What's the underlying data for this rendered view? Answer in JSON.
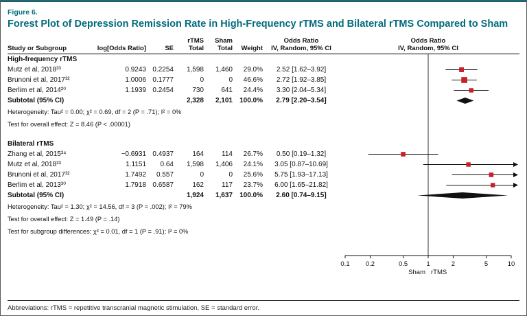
{
  "figure": {
    "label": "Figure 6.",
    "title": "Forest Plot of Depression Remission Rate in High-Frequency rTMS and Bilateral rTMS Compared to Sham",
    "abbreviations": "Abbreviations: rTMS = repetitive transcranial magnetic stimulation, SE = standard error.",
    "accent_color": "#006B7D",
    "marker_color": "#C8202A"
  },
  "table": {
    "headers": {
      "study": "Study or Subgroup",
      "log_or": "log[Odds Ratio]",
      "se": "SE",
      "rtms_total_top": "rTMS",
      "rtms_total_bottom": "Total",
      "sham_total_top": "Sham",
      "sham_total_bottom": "Total",
      "weight": "Weight",
      "or_text_top": "Odds Ratio",
      "or_text_bottom": "IV, Random, 95% CI",
      "or_plot_top": "Odds Ratio",
      "or_plot_bottom": "IV, Random, 95% CI"
    }
  },
  "chart_data": {
    "type": "forest",
    "x_scale": "log10",
    "x_range": [
      0.1,
      10
    ],
    "axis_ticks": [
      0.1,
      0.2,
      0.5,
      1,
      2,
      5,
      10
    ],
    "axis_left_label": "Sham",
    "axis_right_label": "rTMS",
    "groups": [
      {
        "name": "High-frequency rTMS",
        "studies": [
          {
            "study": "Mutz et al, 2018³³",
            "log_or": "0.9243",
            "se": "0.2254",
            "rtms_total": "1,598",
            "sham_total": "1,460",
            "weight": "29.0%",
            "ci_text": "2.52 [1.62–3.92]",
            "est": 2.52,
            "lo": 1.62,
            "hi": 3.92,
            "weight_pct": 29.0
          },
          {
            "study": "Brunoni et al, 2017³²",
            "log_or": "1.0006",
            "se": "0.1777",
            "rtms_total": "0",
            "sham_total": "0",
            "weight": "46.6%",
            "ci_text": "2.72 [1.92–3.85]",
            "est": 2.72,
            "lo": 1.92,
            "hi": 3.85,
            "weight_pct": 46.6
          },
          {
            "study": "Berlim et al, 2014²⁰",
            "log_or": "1.1939",
            "se": "0.2454",
            "rtms_total": "730",
            "sham_total": "641",
            "weight": "24.4%",
            "ci_text": "3.30 [2.04–5.34]",
            "est": 3.3,
            "lo": 2.04,
            "hi": 5.34,
            "weight_pct": 24.4
          }
        ],
        "subtotal": {
          "label": "Subtotal (95% CI)",
          "rtms_total": "2,328",
          "sham_total": "2,101",
          "weight": "100.0%",
          "ci_text": "2.79 [2.20–3.54]",
          "est": 2.79,
          "lo": 2.2,
          "hi": 3.54
        },
        "heterogeneity": "Heterogeneity: Tau² = 0.00; χ² = 0.69, df = 2 (P = .71); I² = 0%",
        "overall_effect": "Test for overall effect: Z = 8.46 (P < .00001)"
      },
      {
        "name": "Bilateral rTMS",
        "studies": [
          {
            "study": "Zhang et al, 2015³⁴",
            "log_or": "−0.6931",
            "se": "0.4937",
            "rtms_total": "164",
            "sham_total": "114",
            "weight": "26.7%",
            "ci_text": "0.50 [0.19–1.32]",
            "est": 0.5,
            "lo": 0.19,
            "hi": 1.32,
            "weight_pct": 26.7
          },
          {
            "study": "Mutz et al, 2018³³",
            "log_or": "1.1151",
            "se": "0.64",
            "rtms_total": "1,598",
            "sham_total": "1,406",
            "weight": "24.1%",
            "ci_text": "3.05 [0.87–10.69]",
            "est": 3.05,
            "lo": 0.87,
            "hi": 10.69,
            "weight_pct": 24.1
          },
          {
            "study": "Brunoni et al, 2017³²",
            "log_or": "1.7492",
            "se": "0.557",
            "rtms_total": "0",
            "sham_total": "0",
            "weight": "25.6%",
            "ci_text": "5.75 [1.93–17.13]",
            "est": 5.75,
            "lo": 1.93,
            "hi": 17.13,
            "weight_pct": 25.6
          },
          {
            "study": "Berlim et al, 2013³⁰",
            "log_or": "1.7918",
            "se": "0.6587",
            "rtms_total": "162",
            "sham_total": "117",
            "weight": "23.7%",
            "ci_text": "6.00 [1.65–21.82]",
            "est": 6.0,
            "lo": 1.65,
            "hi": 21.82,
            "weight_pct": 23.7
          }
        ],
        "subtotal": {
          "label": "Subtotal (95% CI)",
          "rtms_total": "1,924",
          "sham_total": "1,637",
          "weight": "100.0%",
          "ci_text": "2.60 [0.74–9.15]",
          "est": 2.6,
          "lo": 0.74,
          "hi": 9.15
        },
        "heterogeneity": "Heterogeneity: Tau² = 1.30; χ² = 14.56, df = 3 (P = .002); I² = 79%",
        "overall_effect": "Test for overall effect: Z = 1.49 (P = .14)",
        "subgroup_diff": "Test for subgroup differences: χ² = 0.01, df = 1 (P = .91); I² = 0%"
      }
    ]
  }
}
